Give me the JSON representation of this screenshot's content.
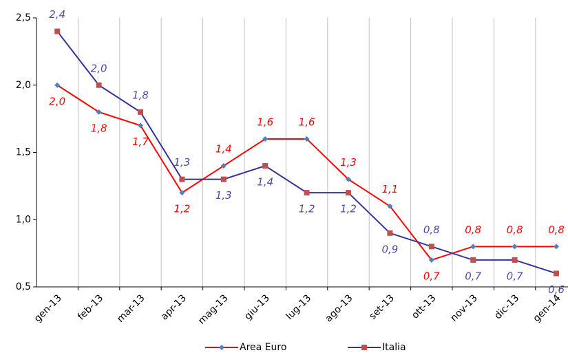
{
  "chart_data": {
    "type": "line",
    "categories": [
      "gen-13",
      "feb-13",
      "mar-13",
      "apr-13",
      "mag-13",
      "giu-13",
      "lug-13",
      "ago-13",
      "set-13",
      "ott-13",
      "nov-13",
      "dic-13",
      "gen-14"
    ],
    "series": [
      {
        "name": "Area Euro",
        "color": "#ff0000",
        "marker": "diamond",
        "marker_color": "#4f81bd",
        "label_color": "#ff0000",
        "values": [
          2.0,
          1.8,
          1.7,
          1.2,
          1.4,
          1.6,
          1.6,
          1.3,
          1.1,
          0.7,
          0.8,
          0.8,
          0.8
        ],
        "value_labels": [
          "2,0",
          "1,8",
          "1,7",
          "1,2",
          "1,4",
          "1,6",
          "1,6",
          "1,3",
          "1,1",
          "0,7",
          "0,8",
          "0,8",
          "0,8"
        ]
      },
      {
        "name": "Italia",
        "color": "#333399",
        "marker": "square",
        "marker_color": "#c0504d",
        "label_color": "#4b4ba8",
        "values": [
          2.4,
          2.0,
          1.8,
          1.3,
          1.3,
          1.4,
          1.2,
          1.2,
          0.9,
          0.8,
          0.7,
          0.7,
          0.6
        ],
        "value_labels": [
          "2,4",
          "2,0",
          "1,8",
          "1,3",
          "1,3",
          "1,4",
          "1,2",
          "1,2",
          "0,9",
          "0,8",
          "0,7",
          "0,7",
          "0,6"
        ]
      }
    ],
    "ylim": [
      0.5,
      2.5
    ],
    "yticks": [
      {
        "value": 0.5,
        "label": "0,5"
      },
      {
        "value": 1.0,
        "label": "1,0"
      },
      {
        "value": 1.5,
        "label": "1,5"
      },
      {
        "value": 2.0,
        "label": "2,0"
      },
      {
        "value": 2.5,
        "label": "2,5"
      }
    ],
    "grid": true
  }
}
